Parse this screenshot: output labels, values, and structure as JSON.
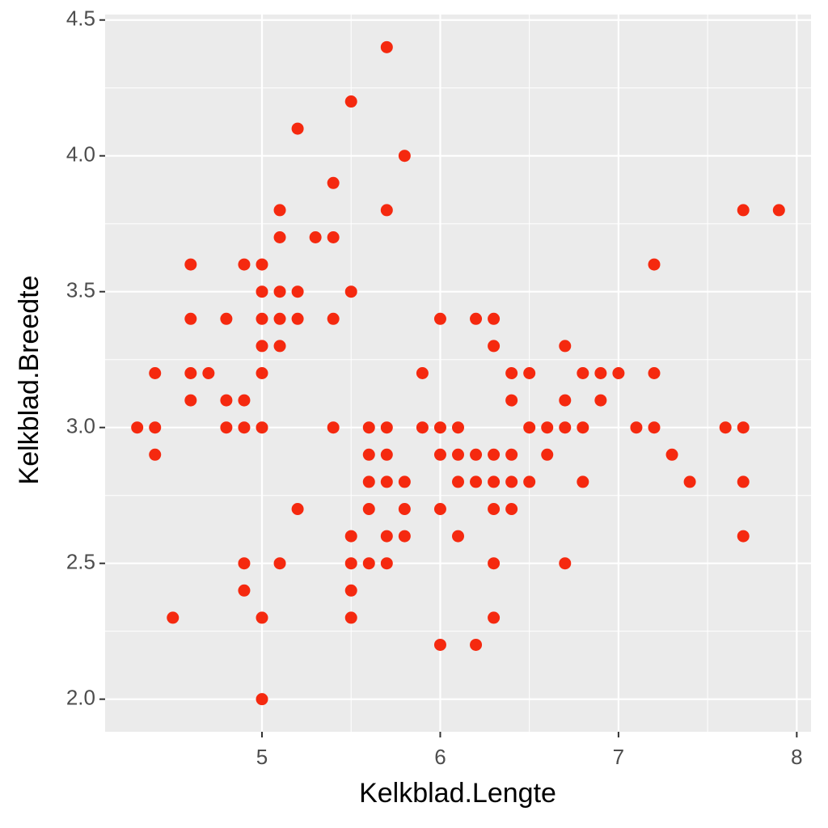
{
  "chart_data": {
    "type": "scatter",
    "x_label": "Kelkblad.Lengte",
    "y_label": "Kelkblad.Breedte",
    "color": "#f5290f",
    "grid": true,
    "xlim": [
      4.12,
      8.08
    ],
    "ylim": [
      1.88,
      4.52
    ],
    "xticks": [
      5,
      6,
      7,
      8
    ],
    "yticks": [
      {
        "value": 2.0,
        "label": "2.0"
      },
      2.5,
      {
        "value": 3.0,
        "label": "3.0"
      },
      3.5,
      {
        "value": 4.0,
        "label": "4.0"
      },
      4.5
    ],
    "x": [
      4.3,
      4.4,
      4.4,
      4.4,
      4.5,
      4.6,
      4.6,
      4.6,
      4.6,
      4.7,
      4.8,
      4.8,
      4.8,
      4.9,
      4.9,
      4.9,
      4.9,
      4.9,
      5.0,
      5.0,
      5.0,
      5.0,
      5.0,
      5.0,
      5.0,
      5.0,
      5.1,
      5.1,
      5.1,
      5.1,
      5.1,
      5.1,
      5.2,
      5.2,
      5.2,
      5.2,
      5.3,
      5.4,
      5.4,
      5.4,
      5.4,
      5.5,
      5.5,
      5.5,
      5.5,
      5.5,
      5.5,
      5.6,
      5.6,
      5.6,
      5.6,
      5.6,
      5.7,
      5.7,
      5.7,
      5.7,
      5.7,
      5.7,
      5.7,
      5.8,
      5.8,
      5.8,
      5.8,
      5.9,
      5.9,
      6.0,
      6.0,
      6.0,
      6.0,
      6.0,
      6.1,
      6.1,
      6.1,
      6.1,
      6.2,
      6.2,
      6.2,
      6.2,
      6.3,
      6.3,
      6.3,
      6.3,
      6.3,
      6.3,
      6.3,
      6.4,
      6.4,
      6.4,
      6.4,
      6.4,
      6.5,
      6.5,
      6.5,
      6.6,
      6.6,
      6.7,
      6.7,
      6.7,
      6.7,
      6.8,
      6.8,
      6.8,
      6.9,
      6.9,
      7.0,
      7.1,
      7.2,
      7.2,
      7.2,
      7.3,
      7.4,
      7.6,
      7.7,
      7.7,
      7.7,
      7.7,
      7.9
    ],
    "y": [
      3.0,
      3.2,
      3.0,
      2.9,
      2.3,
      3.6,
      3.4,
      3.2,
      3.1,
      3.2,
      3.4,
      3.1,
      3.0,
      3.6,
      3.1,
      3.0,
      2.5,
      2.4,
      3.6,
      3.5,
      3.4,
      3.3,
      3.2,
      3.0,
      2.3,
      2.0,
      3.8,
      3.7,
      3.5,
      3.4,
      3.3,
      2.5,
      4.1,
      3.5,
      3.4,
      2.7,
      3.7,
      3.9,
      3.7,
      3.4,
      3.0,
      4.2,
      3.5,
      2.6,
      2.5,
      2.4,
      2.3,
      3.0,
      2.9,
      2.8,
      2.7,
      2.5,
      4.4,
      3.8,
      3.0,
      2.9,
      2.8,
      2.6,
      2.5,
      4.0,
      2.8,
      2.7,
      2.6,
      3.2,
      3.0,
      3.4,
      3.0,
      2.9,
      2.7,
      2.2,
      3.0,
      2.9,
      2.8,
      2.6,
      3.4,
      2.9,
      2.8,
      2.2,
      3.4,
      3.3,
      2.9,
      2.8,
      2.7,
      2.5,
      2.3,
      3.2,
      3.1,
      2.9,
      2.8,
      2.7,
      3.2,
      3.0,
      2.8,
      3.0,
      2.9,
      3.3,
      3.1,
      3.0,
      2.5,
      3.2,
      3.0,
      2.8,
      3.2,
      3.1,
      3.2,
      3.0,
      3.6,
      3.2,
      3.0,
      2.9,
      2.8,
      3.0,
      3.8,
      3.0,
      2.8,
      2.6,
      3.8
    ]
  }
}
